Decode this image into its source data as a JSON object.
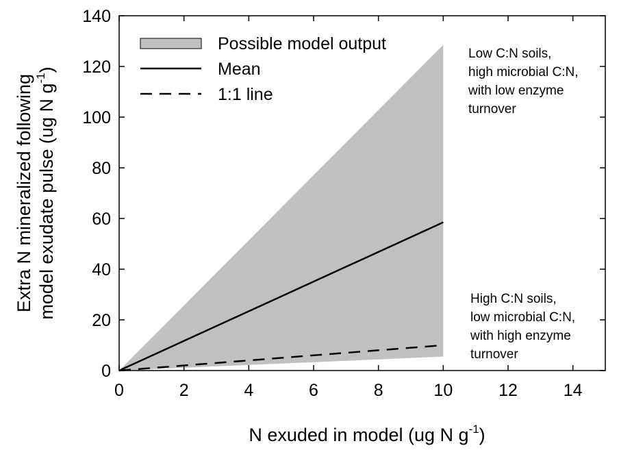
{
  "chart_data": {
    "type": "area",
    "xlabel": {
      "main": "N exuded in model (ug N g",
      "sup": "-1",
      "close": ")"
    },
    "ylabel": {
      "line1": "Extra N mineralized following",
      "line2_main": "model exudate pulse (ug N g",
      "line2_sup": "-1",
      "line2_close": ")"
    },
    "xlim": [
      0,
      15
    ],
    "ylim": [
      0,
      140
    ],
    "xticks": [
      "0",
      "2",
      "4",
      "6",
      "8",
      "10",
      "12",
      "14"
    ],
    "yticks": [
      "0",
      "20",
      "40",
      "60",
      "80",
      "100",
      "120",
      "140"
    ],
    "xtick_values": [
      0,
      2,
      4,
      6,
      8,
      10,
      12,
      14
    ],
    "ytick_values": [
      0,
      20,
      40,
      60,
      80,
      100,
      120,
      140
    ],
    "grid": false,
    "legend_position": "top-left",
    "series": [
      {
        "name": "Possible model output",
        "kind": "band",
        "color": "#c0c0c0",
        "x": [
          0,
          10
        ],
        "lower": [
          0,
          5.5
        ],
        "upper": [
          0,
          128.5
        ]
      },
      {
        "name": "Mean",
        "kind": "line",
        "style": "solid",
        "color": "#000000",
        "x": [
          0,
          10
        ],
        "y": [
          0,
          58.5
        ]
      },
      {
        "name": "1:1 line",
        "kind": "line",
        "style": "dashed",
        "color": "#000000",
        "x": [
          0,
          10
        ],
        "y": [
          0,
          10
        ]
      }
    ],
    "annotations": [
      {
        "id": "upper-note",
        "lines": [
          "Low C:N soils,",
          "high microbial C:N,",
          "with low enzyme",
          "turnover"
        ]
      },
      {
        "id": "lower-note",
        "lines": [
          "High C:N soils,",
          "low microbial C:N,",
          "with high enzyme",
          "turnover"
        ]
      }
    ]
  }
}
